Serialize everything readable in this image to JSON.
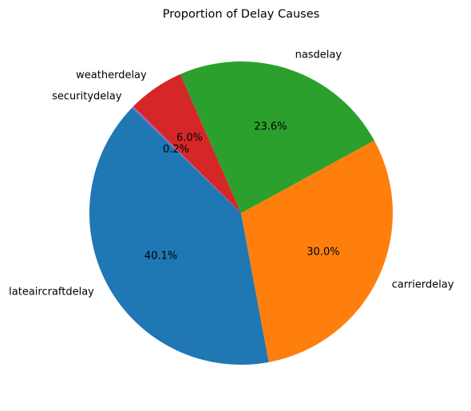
{
  "chart_data": {
    "type": "pie",
    "title": "Proportion of Delay Causes",
    "start_angle_deg": 136,
    "direction": "counterclockwise",
    "slices": [
      {
        "label": "lateaircraftdelay",
        "value": 40.1,
        "pct_label": "40.1%",
        "color": "#1f77b4"
      },
      {
        "label": "carrierdelay",
        "value": 30.0,
        "pct_label": "30.0%",
        "color": "#ff7f0e"
      },
      {
        "label": "nasdelay",
        "value": 23.6,
        "pct_label": "23.6%",
        "color": "#2ca02c"
      },
      {
        "label": "weatherdelay",
        "value": 6.0,
        "pct_label": "6.0%",
        "color": "#d62728"
      },
      {
        "label": "securitydelay",
        "value": 0.2,
        "pct_label": "0.2%",
        "color": "#9467bd"
      }
    ]
  }
}
